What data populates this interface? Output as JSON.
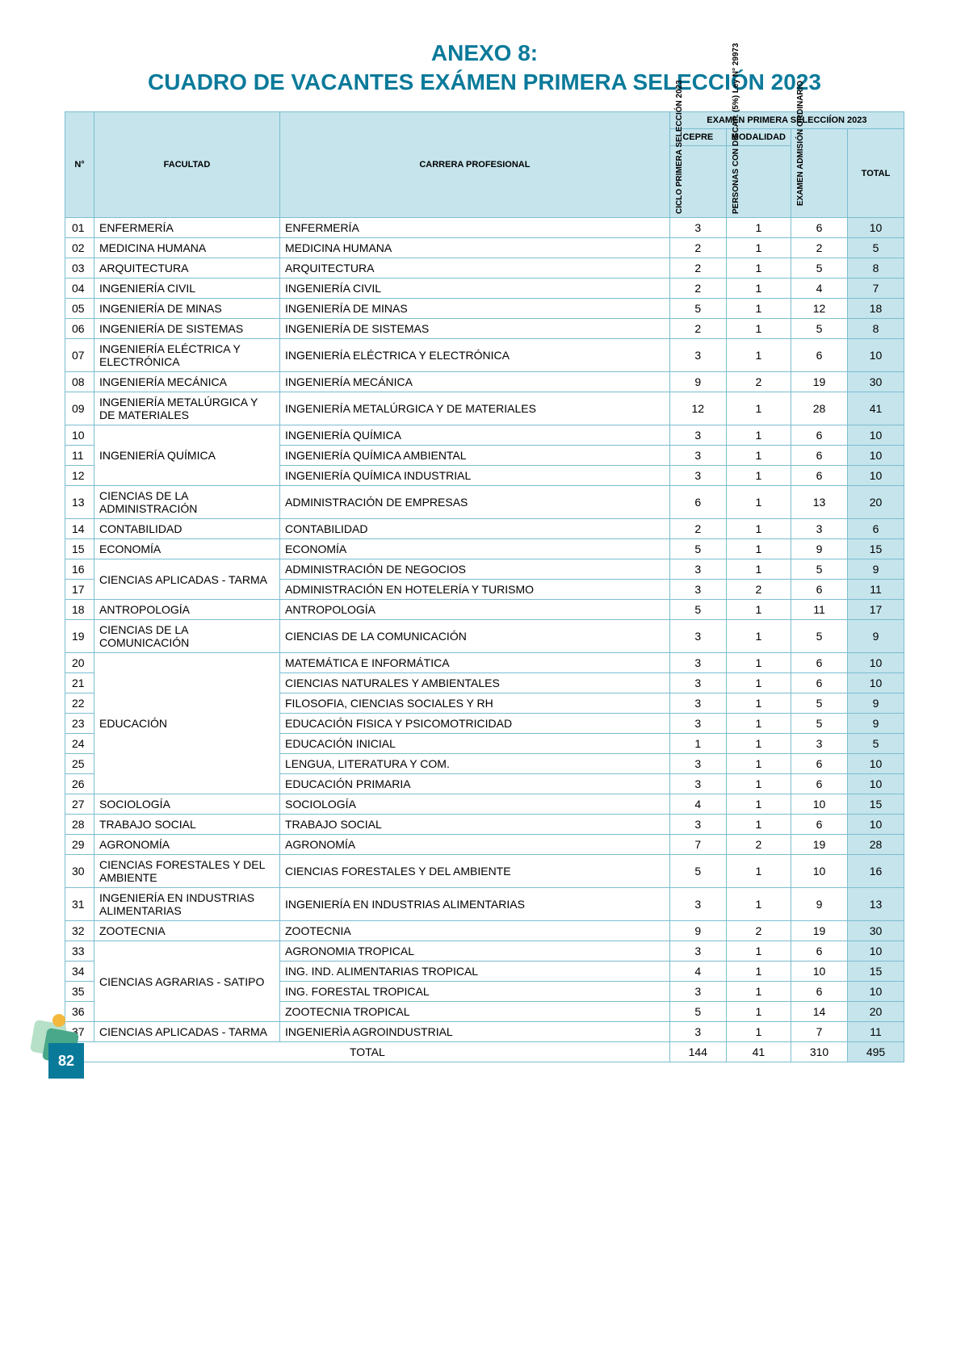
{
  "title_line1": "ANEXO 8:",
  "title_line2": "CUADRO DE VACANTES EXÁMEN PRIMERA SELECCIÓN 2023",
  "headers": {
    "num": "N°",
    "facultad": "FACULTAD",
    "carrera": "CARRERA PROFESIONAL",
    "exam_group": "EXAMEN PRIMERA SELECCIÍON 2023",
    "cepre": "CEPRE",
    "modalidad": "MODALIDAD",
    "ciclo": "CICLO PRIMERA SELECCIÓN 2023",
    "discap": "PERSONAS CON DISCAP. (5%) Ley N° 29973",
    "ordinario": "EXAMEN ADMISIÓN ORDINARIO",
    "total": "TOTAL"
  },
  "rows": [
    {
      "n": "01",
      "fac": "ENFERMERÍA",
      "car": "ENFERMERÍA",
      "v": [
        3,
        1,
        6,
        10
      ]
    },
    {
      "n": "02",
      "fac": "MEDICINA HUMANA",
      "car": "MEDICINA HUMANA",
      "v": [
        2,
        1,
        2,
        5
      ]
    },
    {
      "n": "03",
      "fac": "ARQUITECTURA",
      "car": "ARQUITECTURA",
      "v": [
        2,
        1,
        5,
        8
      ]
    },
    {
      "n": "04",
      "fac": "INGENIERÍA CIVIL",
      "car": "INGENIERÍA CIVIL",
      "v": [
        2,
        1,
        4,
        7
      ]
    },
    {
      "n": "05",
      "fac": "INGENIERÍA DE MINAS",
      "car": "INGENIERÍA DE MINAS",
      "v": [
        5,
        1,
        12,
        18
      ]
    },
    {
      "n": "06",
      "fac": "INGENIERÍA DE SISTEMAS",
      "car": "INGENIERÍA DE SISTEMAS",
      "v": [
        2,
        1,
        5,
        8
      ]
    },
    {
      "n": "07",
      "fac": "INGENIERÍA ELÉCTRICA Y ELECTRÓNICA",
      "car": "INGENIERÍA ELÉCTRICA Y ELECTRÓNICA",
      "v": [
        3,
        1,
        6,
        10
      ]
    },
    {
      "n": "08",
      "fac": "INGENIERÍA MECÁNICA",
      "car": "INGENIERÍA MECÁNICA",
      "v": [
        9,
        2,
        19,
        30
      ]
    },
    {
      "n": "09",
      "fac": "INGENIERÍA  METALÚRGICA Y DE MATERIALES",
      "car": "INGENIERÍA  METALÚRGICA Y DE MATERIALES",
      "v": [
        12,
        1,
        28,
        41
      ]
    },
    {
      "n": "10",
      "fac": "INGENIERÍA QUÍMICA",
      "facspan": 3,
      "car": "INGENIERÍA QUÍMICA",
      "v": [
        3,
        1,
        6,
        10
      ]
    },
    {
      "n": "11",
      "car": "INGENIERÍA QUÍMICA AMBIENTAL",
      "v": [
        3,
        1,
        6,
        10
      ]
    },
    {
      "n": "12",
      "car": "INGENIERÍA QUÍMICA INDUSTRIAL",
      "v": [
        3,
        1,
        6,
        10
      ]
    },
    {
      "n": "13",
      "fac": "CIENCIAS DE LA ADMINISTRACIÓN",
      "car": "ADMINISTRACIÓN DE EMPRESAS",
      "v": [
        6,
        1,
        13,
        20
      ]
    },
    {
      "n": "14",
      "fac": "CONTABILIDAD",
      "car": "CONTABILIDAD",
      "v": [
        2,
        1,
        3,
        6
      ]
    },
    {
      "n": "15",
      "fac": "ECONOMÍA",
      "car": "ECONOMÍA",
      "v": [
        5,
        1,
        9,
        15
      ]
    },
    {
      "n": "16",
      "fac": "CIENCIAS APLICADAS - TARMA",
      "facspan": 2,
      "car": "ADMINISTRACIÓN DE NEGOCIOS",
      "v": [
        3,
        1,
        5,
        9
      ]
    },
    {
      "n": "17",
      "car": "ADMINISTRACIÓN EN HOTELERÍA Y TURISMO",
      "v": [
        3,
        2,
        6,
        11
      ]
    },
    {
      "n": "18",
      "fac": "ANTROPOLOGÍA",
      "car": "ANTROPOLOGÍA",
      "v": [
        5,
        1,
        11,
        17
      ]
    },
    {
      "n": "19",
      "fac": "CIENCIAS DE LA COMUNICACIÓN",
      "car": "CIENCIAS DE LA COMUNICACIÓN",
      "v": [
        3,
        1,
        5,
        9
      ]
    },
    {
      "n": "20",
      "fac": "EDUCACIÓN",
      "facspan": 7,
      "car": "MATEMÁTICA E INFORMÁTICA",
      "v": [
        3,
        1,
        6,
        10
      ]
    },
    {
      "n": "21",
      "car": "CIENCIAS NATURALES Y AMBIENTALES",
      "v": [
        3,
        1,
        6,
        10
      ]
    },
    {
      "n": "22",
      "car": "FILOSOFIA, CIENCIAS SOCIALES  Y RH",
      "v": [
        3,
        1,
        5,
        9
      ]
    },
    {
      "n": "23",
      "car": "EDUCACIÓN FISICA Y PSICOMOTRICIDAD",
      "v": [
        3,
        1,
        5,
        9
      ]
    },
    {
      "n": "24",
      "car": "EDUCACIÓN INICIAL",
      "v": [
        1,
        1,
        3,
        5
      ]
    },
    {
      "n": "25",
      "car": "LENGUA, LITERATURA Y COM.",
      "v": [
        3,
        1,
        6,
        10
      ]
    },
    {
      "n": "26",
      "car": "EDUCACIÓN PRIMARIA",
      "v": [
        3,
        1,
        6,
        10
      ]
    },
    {
      "n": "27",
      "fac": "SOCIOLOGÍA",
      "car": "SOCIOLOGÍA",
      "v": [
        4,
        1,
        10,
        15
      ]
    },
    {
      "n": "28",
      "fac": "TRABAJO SOCIAL",
      "car": "TRABAJO SOCIAL",
      "v": [
        3,
        1,
        6,
        10
      ]
    },
    {
      "n": "29",
      "fac": "AGRONOMÍA",
      "car": "AGRONOMÍA",
      "v": [
        7,
        2,
        19,
        28
      ]
    },
    {
      "n": "30",
      "fac": "CIENCIAS FORESTALES Y DEL AMBIENTE",
      "car": "CIENCIAS FORESTALES Y DEL AMBIENTE",
      "v": [
        5,
        1,
        10,
        16
      ]
    },
    {
      "n": "31",
      "fac": "INGENIERÍA EN INDUSTRIAS ALIMENTARIAS",
      "car": "INGENIERÍA EN INDUSTRIAS ALIMENTARIAS",
      "v": [
        3,
        1,
        9,
        13
      ]
    },
    {
      "n": "32",
      "fac": "ZOOTECNIA",
      "car": "ZOOTECNIA",
      "v": [
        9,
        2,
        19,
        30
      ]
    },
    {
      "n": "33",
      "fac": "CIENCIAS AGRARIAS - SATIPO",
      "facspan": 4,
      "car": "AGRONOMIA TROPICAL",
      "v": [
        3,
        1,
        6,
        10
      ]
    },
    {
      "n": "34",
      "car": "ING. IND. ALIMENTARIAS TROPICAL",
      "v": [
        4,
        1,
        10,
        15
      ]
    },
    {
      "n": "35",
      "car": "ING. FORESTAL TROPICAL",
      "v": [
        3,
        1,
        6,
        10
      ]
    },
    {
      "n": "36",
      "car": "ZOOTECNIA TROPICAL",
      "v": [
        5,
        1,
        14,
        20
      ]
    },
    {
      "n": "37",
      "fac": "CIENCIAS APLICADAS - TARMA",
      "car": "INGENIERÌA AGROINDUSTRIAL",
      "v": [
        3,
        1,
        7,
        11
      ]
    }
  ],
  "footer": {
    "label": "TOTAL",
    "v": [
      144,
      41,
      310,
      495
    ]
  },
  "page_number": "82"
}
